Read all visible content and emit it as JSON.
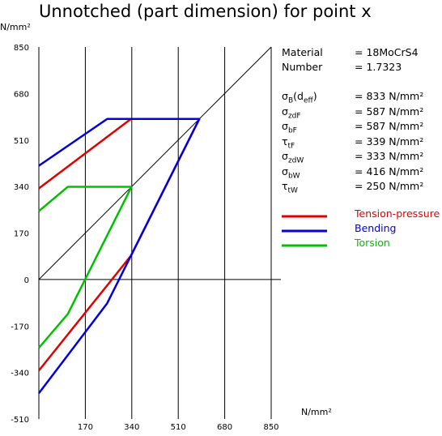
{
  "title": "Unnotched (part dimension) for point x",
  "material": {
    "rows": [
      {
        "label": "Material",
        "value": "= 18MoCrS4"
      },
      {
        "label": "Number",
        "value": "= 1.7323"
      }
    ]
  },
  "properties": [
    {
      "symbol": "σ",
      "sub": "B",
      "suffix": "(d",
      "sub2": "eff",
      "suffix2": ")",
      "value": "= 833  N/mm²"
    },
    {
      "symbol": "σ",
      "sub": "zdF",
      "value": "= 587  N/mm²"
    },
    {
      "symbol": "σ",
      "sub": "bF",
      "value": "= 587  N/mm²"
    },
    {
      "symbol": "τ",
      "sub": "tF",
      "value": "= 339  N/mm²"
    },
    {
      "symbol": "σ",
      "sub": "zdW",
      "value": "= 333  N/mm²"
    },
    {
      "symbol": "σ",
      "sub": "bW",
      "value": "= 416  N/mm²"
    },
    {
      "symbol": "τ",
      "sub": "tW",
      "value": "= 250  N/mm²"
    }
  ],
  "chart_data": {
    "type": "line",
    "title": "Unnotched (part dimension) for point x",
    "xlabel": "N/mm²",
    "ylabel": "N/mm²",
    "xlim": [
      0,
      850
    ],
    "ylim": [
      -510,
      850
    ],
    "xticks": [
      170,
      340,
      510,
      680,
      850
    ],
    "yticks": [
      850,
      680,
      510,
      340,
      170,
      0,
      -170,
      -340,
      -510
    ],
    "diagonal": {
      "from": [
        0,
        0
      ],
      "to": [
        850,
        850
      ],
      "color": "#000000"
    },
    "series": [
      {
        "name": "Tension-pressure",
        "color": "#e00000",
        "points": [
          [
            0,
            333
          ],
          [
            337,
            587
          ],
          [
            587,
            587
          ],
          [
            337,
            87
          ],
          [
            0,
            -333
          ]
        ]
      },
      {
        "name": "Bending",
        "color": "#0000e0",
        "points": [
          [
            0,
            416
          ],
          [
            250,
            587
          ],
          [
            587,
            587
          ],
          [
            250,
            -87
          ],
          [
            0,
            -416
          ]
        ]
      },
      {
        "name": "Torsion",
        "color": "#00c000",
        "points": [
          [
            0,
            250
          ],
          [
            106,
            339
          ],
          [
            339,
            339
          ],
          [
            106,
            -126
          ],
          [
            0,
            -250
          ]
        ]
      }
    ],
    "legend_position": "right"
  }
}
